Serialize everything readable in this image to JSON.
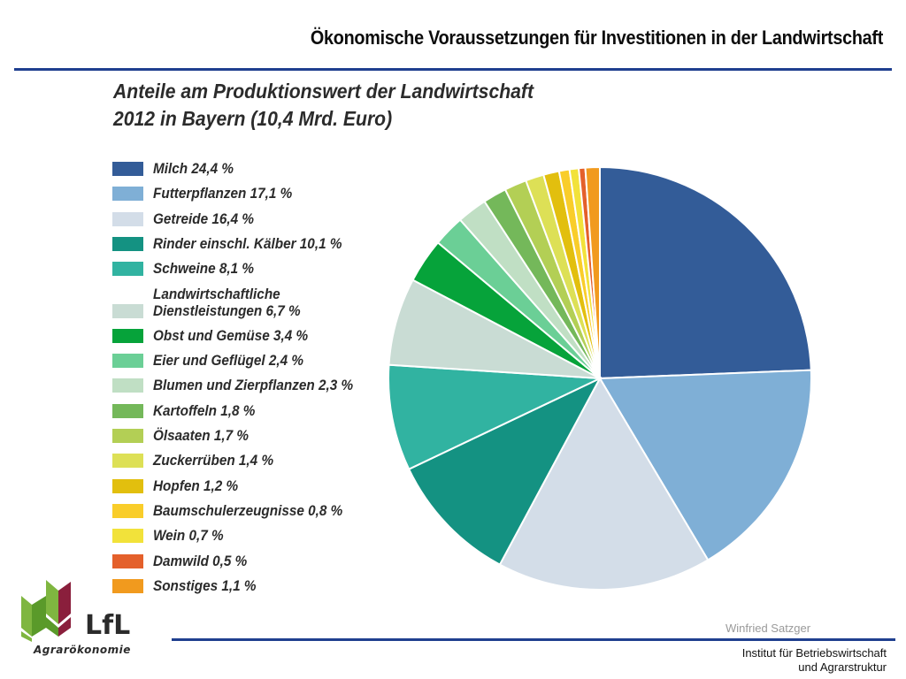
{
  "header": {
    "title": "Ökonomische Voraussetzungen für Investitionen in der Landwirtschaft"
  },
  "chart_data": {
    "type": "pie",
    "title_lines": [
      "Anteile am Produktionswert der Landwirtschaft",
      "2012 in Bayern (10,4 Mrd. Euro)"
    ],
    "start": "12 o'clock, clockwise",
    "slices": [
      {
        "label_lines": [
          "Milch 24,4 %"
        ],
        "value": 24.4,
        "color": "#335c98"
      },
      {
        "label_lines": [
          "Futterpflanzen 17,1 %"
        ],
        "value": 17.1,
        "color": "#7fafd6"
      },
      {
        "label_lines": [
          "Getreide 16,4 %"
        ],
        "value": 16.4,
        "color": "#d3dde8"
      },
      {
        "label_lines": [
          "Rinder einschl. Kälber 10,1 %"
        ],
        "value": 10.1,
        "color": "#149282"
      },
      {
        "label_lines": [
          "Schweine 8,1 %"
        ],
        "value": 8.1,
        "color": "#31b3a1"
      },
      {
        "label_lines": [
          "Landwirtschaftliche",
          "Dienstleistungen 6,7 %"
        ],
        "value": 6.7,
        "color": "#c9dcd4"
      },
      {
        "label_lines": [
          "Obst und Gemüse 3,4 %"
        ],
        "value": 3.4,
        "color": "#06a33a"
      },
      {
        "label_lines": [
          "Eier und Geflügel 2,4 %"
        ],
        "value": 2.4,
        "color": "#6bcf96"
      },
      {
        "label_lines": [
          "Blumen und Zierpflanzen 2,3 %"
        ],
        "value": 2.3,
        "color": "#c0dfc4"
      },
      {
        "label_lines": [
          "Kartoffeln 1,8 %"
        ],
        "value": 1.8,
        "color": "#74b85a"
      },
      {
        "label_lines": [
          "Ölsaaten 1,7 %"
        ],
        "value": 1.7,
        "color": "#b3cf55"
      },
      {
        "label_lines": [
          "Zuckerrüben 1,4 %"
        ],
        "value": 1.4,
        "color": "#dde056"
      },
      {
        "label_lines": [
          "Hopfen 1,2 %"
        ],
        "value": 1.2,
        "color": "#e2bf0e"
      },
      {
        "label_lines": [
          "Baumschulerzeugnisse 0,8 %"
        ],
        "value": 0.8,
        "color": "#f9cd2a"
      },
      {
        "label_lines": [
          "Wein 0,7 %"
        ],
        "value": 0.7,
        "color": "#f2e23a"
      },
      {
        "label_lines": [
          "Damwild 0,5 %"
        ],
        "value": 0.5,
        "color": "#e4602b"
      },
      {
        "label_lines": [
          "Sonstiges 1,1 %"
        ],
        "value": 1.1,
        "color": "#f19a1e"
      }
    ]
  },
  "footer": {
    "logo_text": "LfL",
    "logo_sub": "Agrarökonomie",
    "author": "Winfried Satzger",
    "institute_line1": "Institut für Betriebswirtschaft",
    "institute_line2": "und Agrarstruktur"
  }
}
